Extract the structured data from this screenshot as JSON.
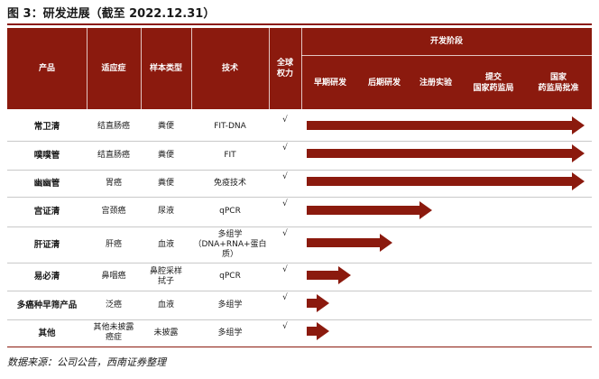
{
  "figure": {
    "title": "图 3：研发进展（截至 2022.12.31）",
    "source": "数据来源：公司公告，西南证券整理"
  },
  "table": {
    "headers": {
      "product": "产品",
      "indication": "适应症",
      "sample": "样本类型",
      "technology": "技术",
      "rights": "全球\n权力",
      "stage_group": "开发阶段",
      "stages": [
        "早期研发",
        "后期研发",
        "注册实验",
        "提交\n国家药监局",
        "国家\n药监局批准"
      ]
    },
    "rows": [
      {
        "product": "常卫清",
        "indication": "结直肠癌",
        "sample": "粪便",
        "technology": "FIT-DNA",
        "rights": "√",
        "stage_progress": 1.0
      },
      {
        "product": "噗噗管",
        "indication": "结直肠癌",
        "sample": "粪便",
        "technology": "FIT",
        "rights": "√",
        "stage_progress": 1.0
      },
      {
        "product": "幽幽管",
        "indication": "胃癌",
        "sample": "粪便",
        "technology": "免疫技术",
        "rights": "√",
        "stage_progress": 1.0
      },
      {
        "product": "宫证清",
        "indication": "宫颈癌",
        "sample": "尿液",
        "technology": "qPCR",
        "rights": "√",
        "stage_progress": 0.45
      },
      {
        "product": "肝证清",
        "indication": "肝癌",
        "sample": "血液",
        "technology": "多组学\n（DNA+RNA+蛋白\n质）",
        "rights": "√",
        "stage_progress": 0.31
      },
      {
        "product": "易必清",
        "indication": "鼻咽癌",
        "sample": "鼻腔采样\n拭子",
        "technology": "qPCR",
        "rights": "√",
        "stage_progress": 0.16
      },
      {
        "product": "多癌种早筛产品",
        "indication": "泛癌",
        "sample": "血液",
        "technology": "多组学",
        "rights": "√",
        "stage_progress": 0.08
      },
      {
        "product": "其他",
        "indication": "其他未披露\n癌症",
        "sample": "未披露",
        "technology": "多组学",
        "rights": "√",
        "stage_progress": 0.08
      }
    ]
  },
  "colors": {
    "accent": "#8b1a0e",
    "header_text": "#ffffff"
  }
}
